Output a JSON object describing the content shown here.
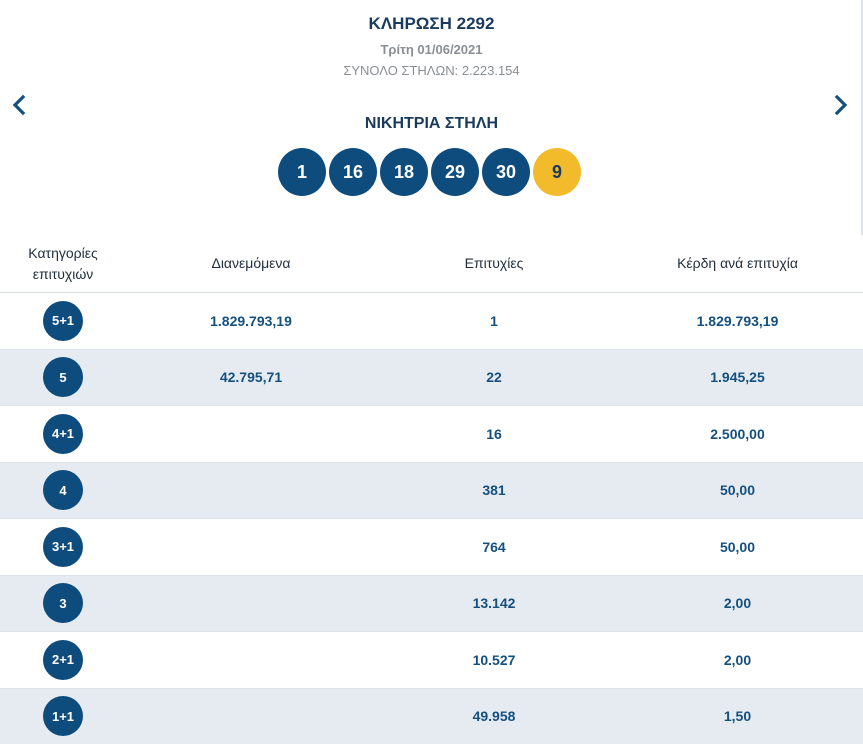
{
  "header": {
    "title": "ΚΛΗΡΩΣΗ 2292",
    "date": "Τρίτη 01/06/2021",
    "total_columns": "ΣΥΝΟΛΟ ΣΤΗΛΩΝ: 2.223.154"
  },
  "nav": {
    "prev_icon": "chevron-left-icon",
    "next_icon": "chevron-right-icon"
  },
  "winning": {
    "title": "ΝΙΚΗΤΡΙΑ ΣΤΗΛΗ",
    "numbers": [
      "1",
      "16",
      "18",
      "29",
      "30"
    ],
    "bonus": "9"
  },
  "colors": {
    "primary": "#0e4c7e",
    "bonus": "#f2bb2c",
    "heading": "#1a3a5e",
    "value_text": "#14507f",
    "alt_row": "#e6ebf2"
  },
  "table": {
    "headers": {
      "category_line1": "Κατηγορίες",
      "category_line2": "επιτυχιών",
      "distributed": "Διανεμόμενα",
      "winners": "Επιτυχίες",
      "prize": "Κέρδη ανά επιτυχία"
    },
    "rows": [
      {
        "category": "5+1",
        "distributed": "1.829.793,19",
        "winners": "1",
        "prize": "1.829.793,19"
      },
      {
        "category": "5",
        "distributed": "42.795,71",
        "winners": "22",
        "prize": "1.945,25"
      },
      {
        "category": "4+1",
        "distributed": "",
        "winners": "16",
        "prize": "2.500,00"
      },
      {
        "category": "4",
        "distributed": "",
        "winners": "381",
        "prize": "50,00"
      },
      {
        "category": "3+1",
        "distributed": "",
        "winners": "764",
        "prize": "50,00"
      },
      {
        "category": "3",
        "distributed": "",
        "winners": "13.142",
        "prize": "2,00"
      },
      {
        "category": "2+1",
        "distributed": "",
        "winners": "10.527",
        "prize": "2,00"
      },
      {
        "category": "1+1",
        "distributed": "",
        "winners": "49.958",
        "prize": "1,50"
      }
    ]
  }
}
